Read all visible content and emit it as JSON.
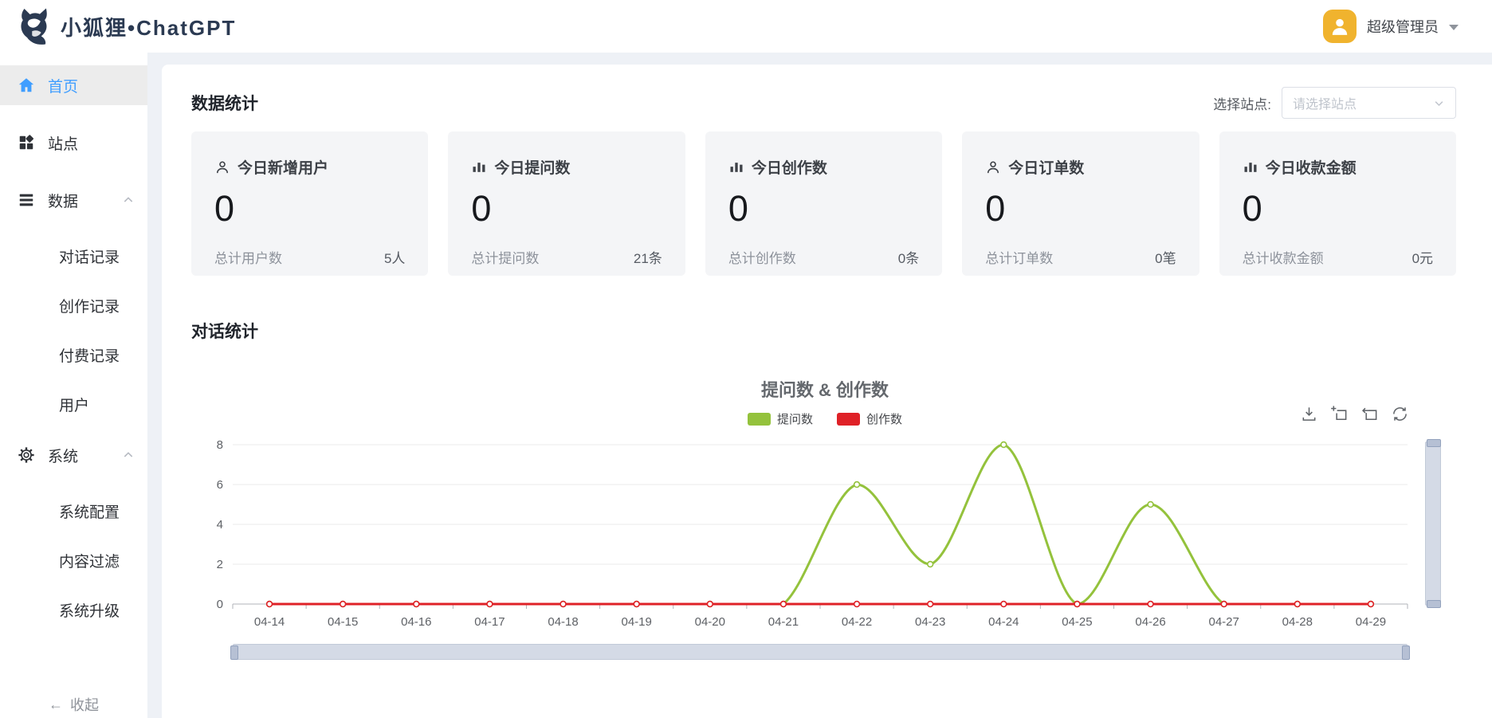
{
  "brand": {
    "title": "小狐狸•ChatGPT",
    "logo_icon": "fox-icon"
  },
  "header": {
    "user_name": "超级管理员",
    "avatar_icon": "person-icon"
  },
  "sidebar": {
    "items": [
      {
        "label": "首页",
        "icon": "home-icon",
        "active": true
      },
      {
        "label": "站点",
        "icon": "grid-icon"
      },
      {
        "label": "数据",
        "icon": "list-icon",
        "expanded": true,
        "children": [
          "对话记录",
          "创作记录",
          "付费记录",
          "用户"
        ]
      },
      {
        "label": "系统",
        "icon": "gear-icon",
        "expanded": true,
        "children": [
          "系统配置",
          "内容过滤",
          "系统升级"
        ]
      }
    ],
    "collapse_label": "收起",
    "collapse_arrow": "←"
  },
  "sections": {
    "stats_title": "数据统计",
    "chat_title": "对话统计"
  },
  "site_select": {
    "label": "选择站点:",
    "placeholder": "请选择站点"
  },
  "stats": {
    "cards": [
      {
        "icon": "person-icon",
        "title": "今日新增用户",
        "value": "0",
        "footer_label": "总计用户数",
        "footer_value": "5人"
      },
      {
        "icon": "bar-chart-icon",
        "title": "今日提问数",
        "value": "0",
        "footer_label": "总计提问数",
        "footer_value": "21条"
      },
      {
        "icon": "bar-chart-icon",
        "title": "今日创作数",
        "value": "0",
        "footer_label": "总计创作数",
        "footer_value": "0条"
      },
      {
        "icon": "person-icon",
        "title": "今日订单数",
        "value": "0",
        "footer_label": "总计订单数",
        "footer_value": "0笔"
      },
      {
        "icon": "bar-chart-icon",
        "title": "今日收款金额",
        "value": "0",
        "footer_label": "总计收款金额",
        "footer_value": "0元"
      }
    ]
  },
  "chart_data": {
    "type": "line",
    "title": "提问数 & 创作数",
    "x": [
      "04-14",
      "04-15",
      "04-16",
      "04-17",
      "04-18",
      "04-19",
      "04-20",
      "04-21",
      "04-22",
      "04-23",
      "04-24",
      "04-25",
      "04-26",
      "04-27",
      "04-28",
      "04-29"
    ],
    "series": [
      {
        "name": "提问数",
        "color": "#94c23c",
        "smooth": true,
        "values": [
          0,
          0,
          0,
          0,
          0,
          0,
          0,
          0,
          6,
          2,
          8,
          0,
          5,
          0,
          0,
          0
        ]
      },
      {
        "name": "创作数",
        "color": "#df2127",
        "smooth": true,
        "values": [
          0,
          0,
          0,
          0,
          0,
          0,
          0,
          0,
          0,
          0,
          0,
          0,
          0,
          0,
          0,
          0
        ]
      }
    ],
    "ylim": [
      0,
      8
    ],
    "yticks": [
      0,
      2,
      4,
      6,
      8
    ],
    "grid": true,
    "legend_position": "top",
    "toolbox_icons": [
      "download-icon",
      "zoom-select-icon",
      "zoom-reset-icon",
      "restore-icon"
    ],
    "datazoom": {
      "horizontal": true,
      "vertical": true
    }
  },
  "colors": {
    "brand_navy": "#2b3a52",
    "primary_blue": "#409eff",
    "avatar_amber": "#f0b32e",
    "series_green": "#94c23c",
    "series_red": "#df2127"
  }
}
